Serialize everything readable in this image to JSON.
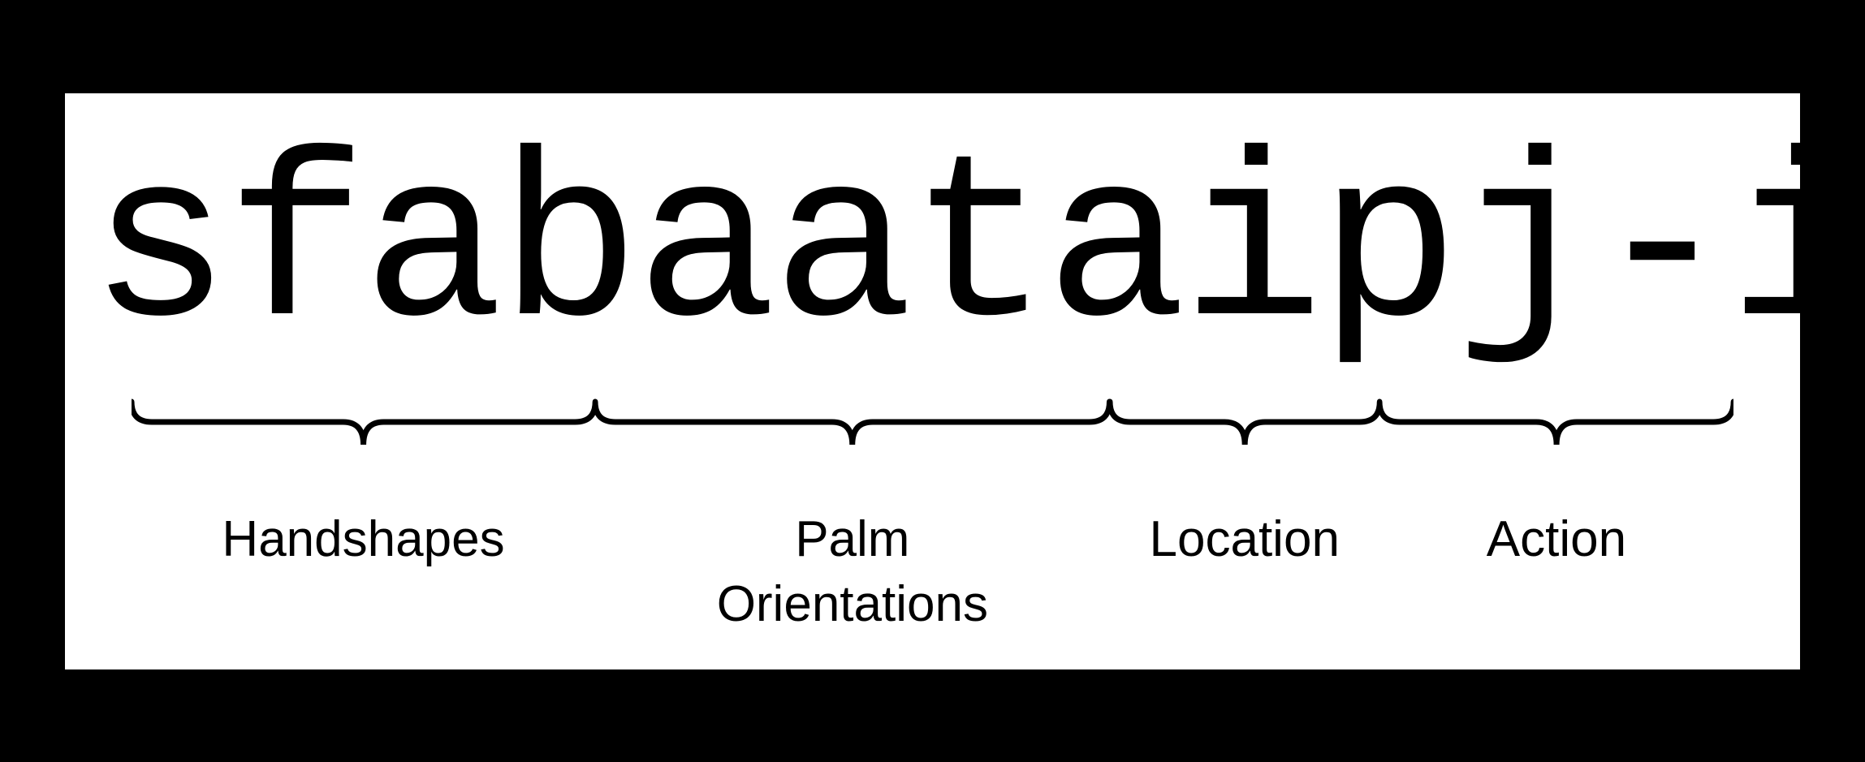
{
  "diagram": {
    "code": "sfabaataipj-i",
    "code_font": "monospace",
    "code_fontsize": 290,
    "code_color": "#000000",
    "background_color": "#ffffff",
    "border_color": "#000000",
    "border_width": 40,
    "segments": [
      {
        "label": "Handshapes",
        "start_pct": 2.5,
        "width_pct": 27.5,
        "label_fontsize": 62
      },
      {
        "label": "Palm\nOrientations",
        "start_pct": 30.0,
        "width_pct": 30.5,
        "label_fontsize": 62
      },
      {
        "label": "Location",
        "start_pct": 60.5,
        "width_pct": 16.0,
        "label_fontsize": 62
      },
      {
        "label": "Action",
        "start_pct": 76.5,
        "width_pct": 21.0,
        "label_fontsize": 62
      }
    ],
    "brace_color": "#000000",
    "brace_stroke_width": 7,
    "brace_height": 100
  }
}
